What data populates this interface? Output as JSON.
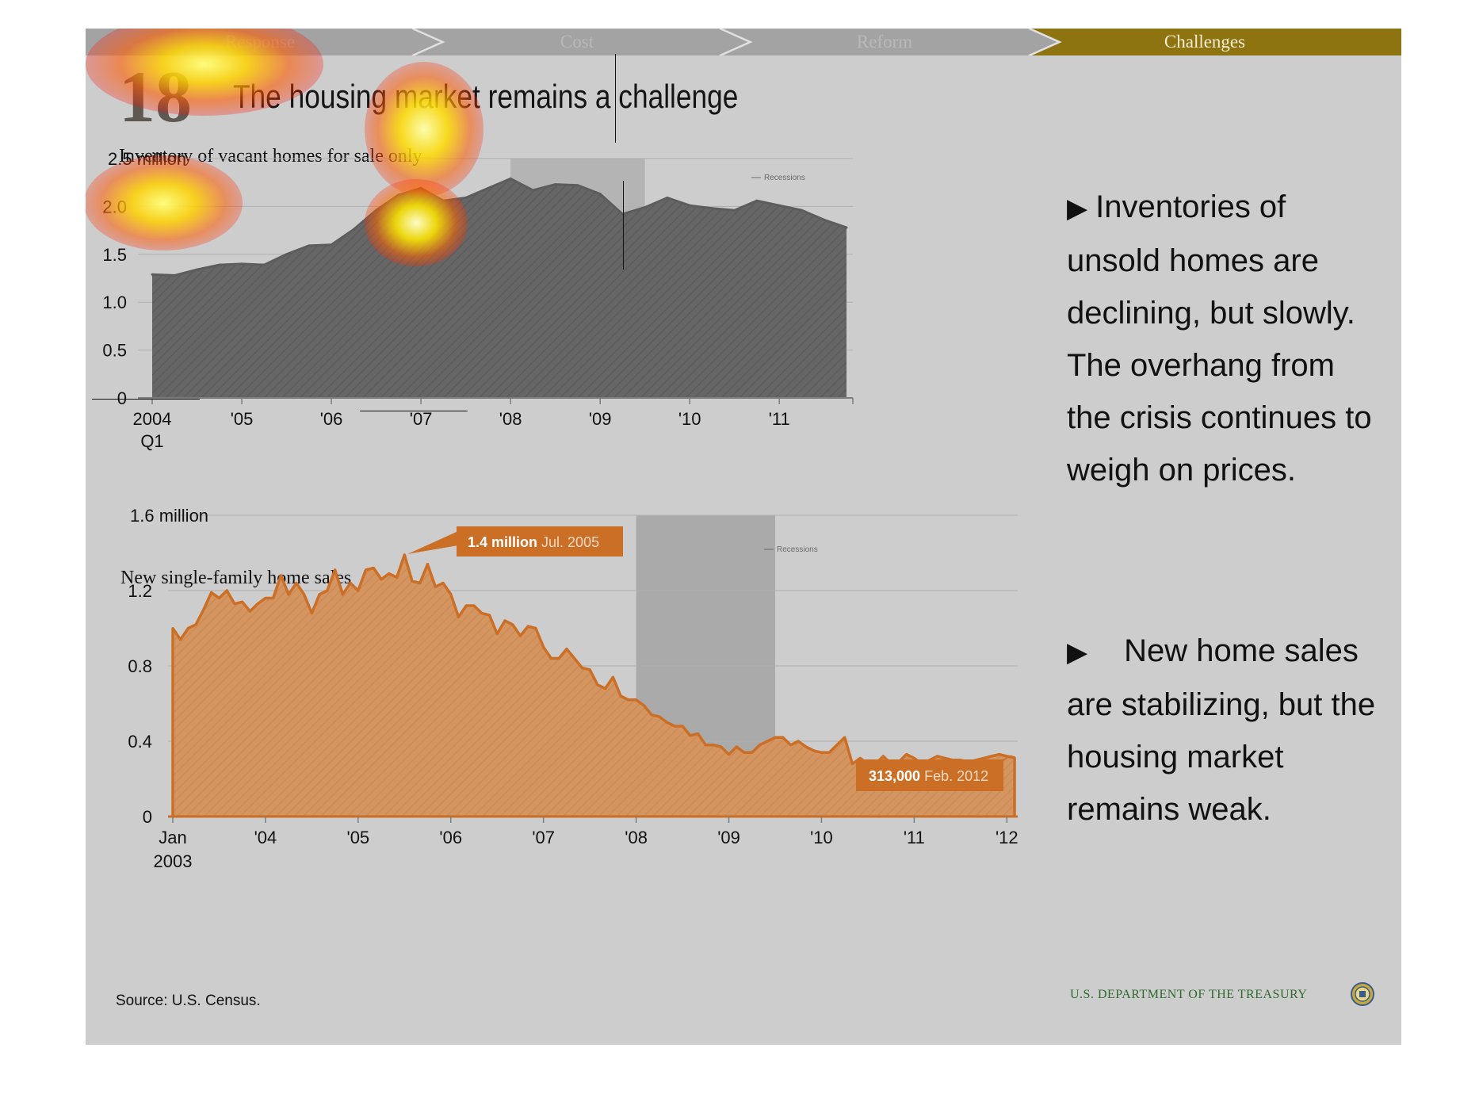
{
  "nav": {
    "tabs": [
      {
        "label": "Response",
        "active": false
      },
      {
        "label": "Cost",
        "active": false
      },
      {
        "label": "Reform",
        "active": false
      },
      {
        "label": "Challenges",
        "active": true
      }
    ],
    "colors": {
      "inactive": "#a3a3a3",
      "active": "#8e7410"
    }
  },
  "slide": {
    "number": "18",
    "title": "The housing market remains a challenge"
  },
  "chart_data": [
    {
      "type": "area",
      "title": "Inventory of vacant homes for sale only",
      "y_unit_label": "2.5 million",
      "yticks": [
        "0",
        "0.5",
        "1.0",
        "1.5",
        "2.0"
      ],
      "ylim": [
        0,
        2.5
      ],
      "x_tick_labels": [
        "2004",
        "'05",
        "'06",
        "'07",
        "'08",
        "'09",
        "'10",
        "'11"
      ],
      "x_first_sublabel": "Q1",
      "xlim": [
        2004.0,
        2011.75
      ],
      "recession": {
        "start": 2008.0,
        "end": 2009.5,
        "label": "Recessions"
      },
      "grid": true,
      "color": "#5d5d5d",
      "series": [
        {
          "values": [
            {
              "x": 2004.0,
              "y": 1.29
            },
            {
              "x": 2004.25,
              "y": 1.28
            },
            {
              "x": 2004.5,
              "y": 1.34
            },
            {
              "x": 2004.75,
              "y": 1.39
            },
            {
              "x": 2005.0,
              "y": 1.4
            },
            {
              "x": 2005.25,
              "y": 1.39
            },
            {
              "x": 2005.5,
              "y": 1.5
            },
            {
              "x": 2005.75,
              "y": 1.59
            },
            {
              "x": 2006.0,
              "y": 1.6
            },
            {
              "x": 2006.25,
              "y": 1.76
            },
            {
              "x": 2006.5,
              "y": 1.96
            },
            {
              "x": 2006.75,
              "y": 2.12
            },
            {
              "x": 2007.0,
              "y": 2.19
            },
            {
              "x": 2007.25,
              "y": 2.06
            },
            {
              "x": 2007.5,
              "y": 2.09
            },
            {
              "x": 2007.75,
              "y": 2.19
            },
            {
              "x": 2008.0,
              "y": 2.29
            },
            {
              "x": 2008.25,
              "y": 2.17
            },
            {
              "x": 2008.5,
              "y": 2.23
            },
            {
              "x": 2008.75,
              "y": 2.22
            },
            {
              "x": 2009.0,
              "y": 2.13
            },
            {
              "x": 2009.25,
              "y": 1.92
            },
            {
              "x": 2009.5,
              "y": 1.99
            },
            {
              "x": 2009.75,
              "y": 2.09
            },
            {
              "x": 2010.0,
              "y": 2.01
            },
            {
              "x": 2010.25,
              "y": 1.98
            },
            {
              "x": 2010.5,
              "y": 1.96
            },
            {
              "x": 2010.75,
              "y": 2.06
            },
            {
              "x": 2011.0,
              "y": 2.01
            },
            {
              "x": 2011.25,
              "y": 1.96
            },
            {
              "x": 2011.5,
              "y": 1.86
            },
            {
              "x": 2011.75,
              "y": 1.78
            }
          ]
        }
      ]
    },
    {
      "type": "area",
      "title": "New single-family home sales",
      "y_unit_label": "1.6 million",
      "yticks": [
        "0",
        "0.4",
        "0.8",
        "1.2"
      ],
      "ylim": [
        0,
        1.6
      ],
      "x_tick_labels": [
        "Jan",
        "'04",
        "'05",
        "'06",
        "'07",
        "'08",
        "'09",
        "'10",
        "'11",
        "'12"
      ],
      "x_first_sublabel": "2003",
      "xlim": [
        2003.0,
        2012.083
      ],
      "recession": {
        "start": 2008.0,
        "end": 2009.5,
        "label": "Recessions"
      },
      "grid": true,
      "color": "#cc6f26",
      "annotations": [
        {
          "bold": "1.4 million",
          "light": "Jul. 2005",
          "x": 2005.5,
          "y": 1.39
        },
        {
          "bold": "313,000",
          "light": "Feb. 2012",
          "x": 2012.083,
          "y": 0.313
        }
      ],
      "series": [
        {
          "values": [
            1.0,
            0.94,
            1.0,
            1.02,
            1.1,
            1.19,
            1.16,
            1.2,
            1.13,
            1.14,
            1.09,
            1.13,
            1.16,
            1.16,
            1.28,
            1.18,
            1.24,
            1.18,
            1.08,
            1.18,
            1.2,
            1.31,
            1.18,
            1.24,
            1.2,
            1.31,
            1.32,
            1.26,
            1.29,
            1.27,
            1.39,
            1.25,
            1.24,
            1.34,
            1.22,
            1.24,
            1.18,
            1.06,
            1.12,
            1.12,
            1.08,
            1.07,
            0.97,
            1.04,
            1.02,
            0.96,
            1.01,
            1.0,
            0.9,
            0.84,
            0.84,
            0.89,
            0.84,
            0.79,
            0.78,
            0.7,
            0.68,
            0.74,
            0.64,
            0.62,
            0.62,
            0.59,
            0.54,
            0.53,
            0.5,
            0.48,
            0.48,
            0.43,
            0.44,
            0.38,
            0.38,
            0.37,
            0.33,
            0.37,
            0.34,
            0.34,
            0.38,
            0.4,
            0.42,
            0.42,
            0.38,
            0.4,
            0.37,
            0.35,
            0.34,
            0.34,
            0.38,
            0.42,
            0.28,
            0.31,
            0.28,
            0.28,
            0.32,
            0.28,
            0.29,
            0.33,
            0.31,
            0.28,
            0.3,
            0.32,
            0.31,
            0.3,
            0.3,
            0.29,
            0.3,
            0.31,
            0.32,
            0.33,
            0.32,
            0.313
          ]
        }
      ]
    }
  ],
  "bullets": [
    {
      "arrow": "▶",
      "text": "Inventories of unsold homes are declining, but slowly. The overhang from the crisis continues to weigh on prices."
    },
    {
      "arrow": "▶",
      "text": "New home sales are stabilizing, but the housing market remains weak."
    }
  ],
  "source": "Source: U.S. Census.",
  "footer": {
    "agency": "U.S. DEPARTMENT OF THE TREASURY",
    "seal_icon": "treasury-seal-icon"
  }
}
